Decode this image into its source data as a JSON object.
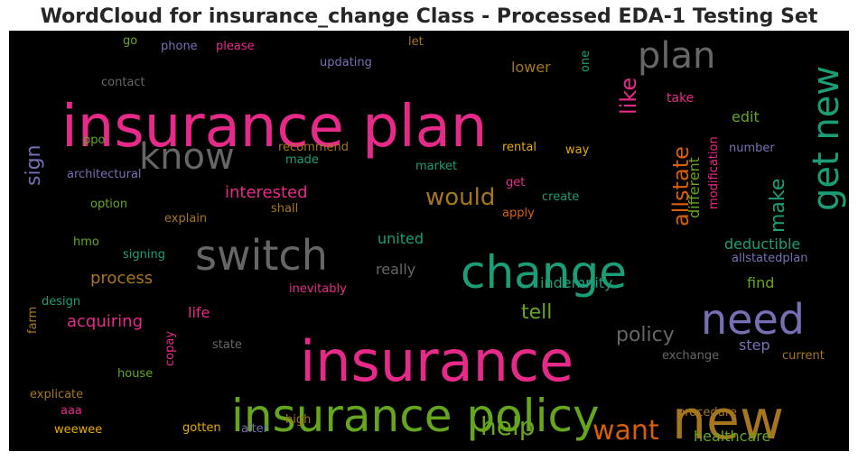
{
  "chart_data": {
    "type": "wordcloud",
    "title": "WordCloud for insurance_change Class - Processed EDA-1 Testing Set",
    "words": [
      {
        "text": "insurance plan",
        "color": "#e7298a"
      },
      {
        "text": "insurance",
        "color": "#e7298a"
      },
      {
        "text": "insurance policy",
        "color": "#66a61e"
      },
      {
        "text": "change",
        "color": "#1b9e77"
      },
      {
        "text": "new",
        "color": "#a6761d"
      },
      {
        "text": "switch",
        "color": "#666666"
      },
      {
        "text": "get new",
        "color": "#1b9e77"
      },
      {
        "text": "need",
        "color": "#7570b3"
      },
      {
        "text": "know",
        "color": "#666666"
      },
      {
        "text": "plan",
        "color": "#666666"
      },
      {
        "text": "want",
        "color": "#d95f02"
      },
      {
        "text": "help",
        "color": "#66a61e"
      },
      {
        "text": "allstate",
        "color": "#d95f02"
      },
      {
        "text": "would",
        "color": "#a6761d"
      },
      {
        "text": "make",
        "color": "#1b9e77"
      },
      {
        "text": "like",
        "color": "#e7298a"
      },
      {
        "text": "policy",
        "color": "#666666"
      },
      {
        "text": "tell",
        "color": "#66a61e"
      },
      {
        "text": "sign",
        "color": "#7570b3"
      },
      {
        "text": "interested",
        "color": "#e7298a"
      },
      {
        "text": "process",
        "color": "#a6761d"
      },
      {
        "text": "acquiring",
        "color": "#e7298a"
      },
      {
        "text": "united",
        "color": "#1b9e77"
      },
      {
        "text": "really",
        "color": "#666666"
      },
      {
        "text": "indemnity",
        "color": "#1b9e77"
      },
      {
        "text": "deductible",
        "color": "#1b9e77"
      },
      {
        "text": "healthcare",
        "color": "#66a61e"
      },
      {
        "text": "different",
        "color": "#66a61e"
      },
      {
        "text": "lower",
        "color": "#a6761d"
      },
      {
        "text": "edit",
        "color": "#66a61e"
      },
      {
        "text": "find",
        "color": "#66a61e"
      },
      {
        "text": "step",
        "color": "#7570b3"
      },
      {
        "text": "life",
        "color": "#e7298a"
      },
      {
        "text": "take",
        "color": "#e7298a"
      },
      {
        "text": "rental",
        "color": "#e6ab02"
      },
      {
        "text": "way",
        "color": "#e6ab02"
      },
      {
        "text": "number",
        "color": "#7570b3"
      },
      {
        "text": "modification",
        "color": "#e7298a"
      },
      {
        "text": "allstatedplan",
        "color": "#7570b3"
      },
      {
        "text": "current",
        "color": "#a6761d"
      },
      {
        "text": "exchange",
        "color": "#666666"
      },
      {
        "text": "procedure",
        "color": "#a6761d"
      },
      {
        "text": "updating",
        "color": "#7570b3"
      },
      {
        "text": "phone",
        "color": "#7570b3"
      },
      {
        "text": "please",
        "color": "#e7298a"
      },
      {
        "text": "go",
        "color": "#66a61e"
      },
      {
        "text": "let",
        "color": "#a6761d"
      },
      {
        "text": "one",
        "color": "#1b9e77"
      },
      {
        "text": "contact",
        "color": "#666666"
      },
      {
        "text": "ppo",
        "color": "#66a61e"
      },
      {
        "text": "recommend",
        "color": "#a6761d"
      },
      {
        "text": "made",
        "color": "#1b9e77"
      },
      {
        "text": "market",
        "color": "#1b9e77"
      },
      {
        "text": "architectural",
        "color": "#7570b3"
      },
      {
        "text": "get",
        "color": "#e7298a"
      },
      {
        "text": "create",
        "color": "#1b9e77"
      },
      {
        "text": "option",
        "color": "#66a61e"
      },
      {
        "text": "shall",
        "color": "#a6761d"
      },
      {
        "text": "apply",
        "color": "#d95f02"
      },
      {
        "text": "explain",
        "color": "#a6761d"
      },
      {
        "text": "hmo",
        "color": "#66a61e"
      },
      {
        "text": "signing",
        "color": "#1b9e77"
      },
      {
        "text": "inevitably",
        "color": "#e7298a"
      },
      {
        "text": "design",
        "color": "#1b9e77"
      },
      {
        "text": "farm",
        "color": "#a6761d"
      },
      {
        "text": "copay",
        "color": "#e7298a"
      },
      {
        "text": "state",
        "color": "#666666"
      },
      {
        "text": "house",
        "color": "#66a61e"
      },
      {
        "text": "explicate",
        "color": "#a6761d"
      },
      {
        "text": "aaa",
        "color": "#e7298a"
      },
      {
        "text": "weewee",
        "color": "#e6ab02"
      },
      {
        "text": "gotten",
        "color": "#e6ab02"
      },
      {
        "text": "alter",
        "color": "#7570b3"
      },
      {
        "text": "high",
        "color": "#a6761d"
      }
    ]
  }
}
